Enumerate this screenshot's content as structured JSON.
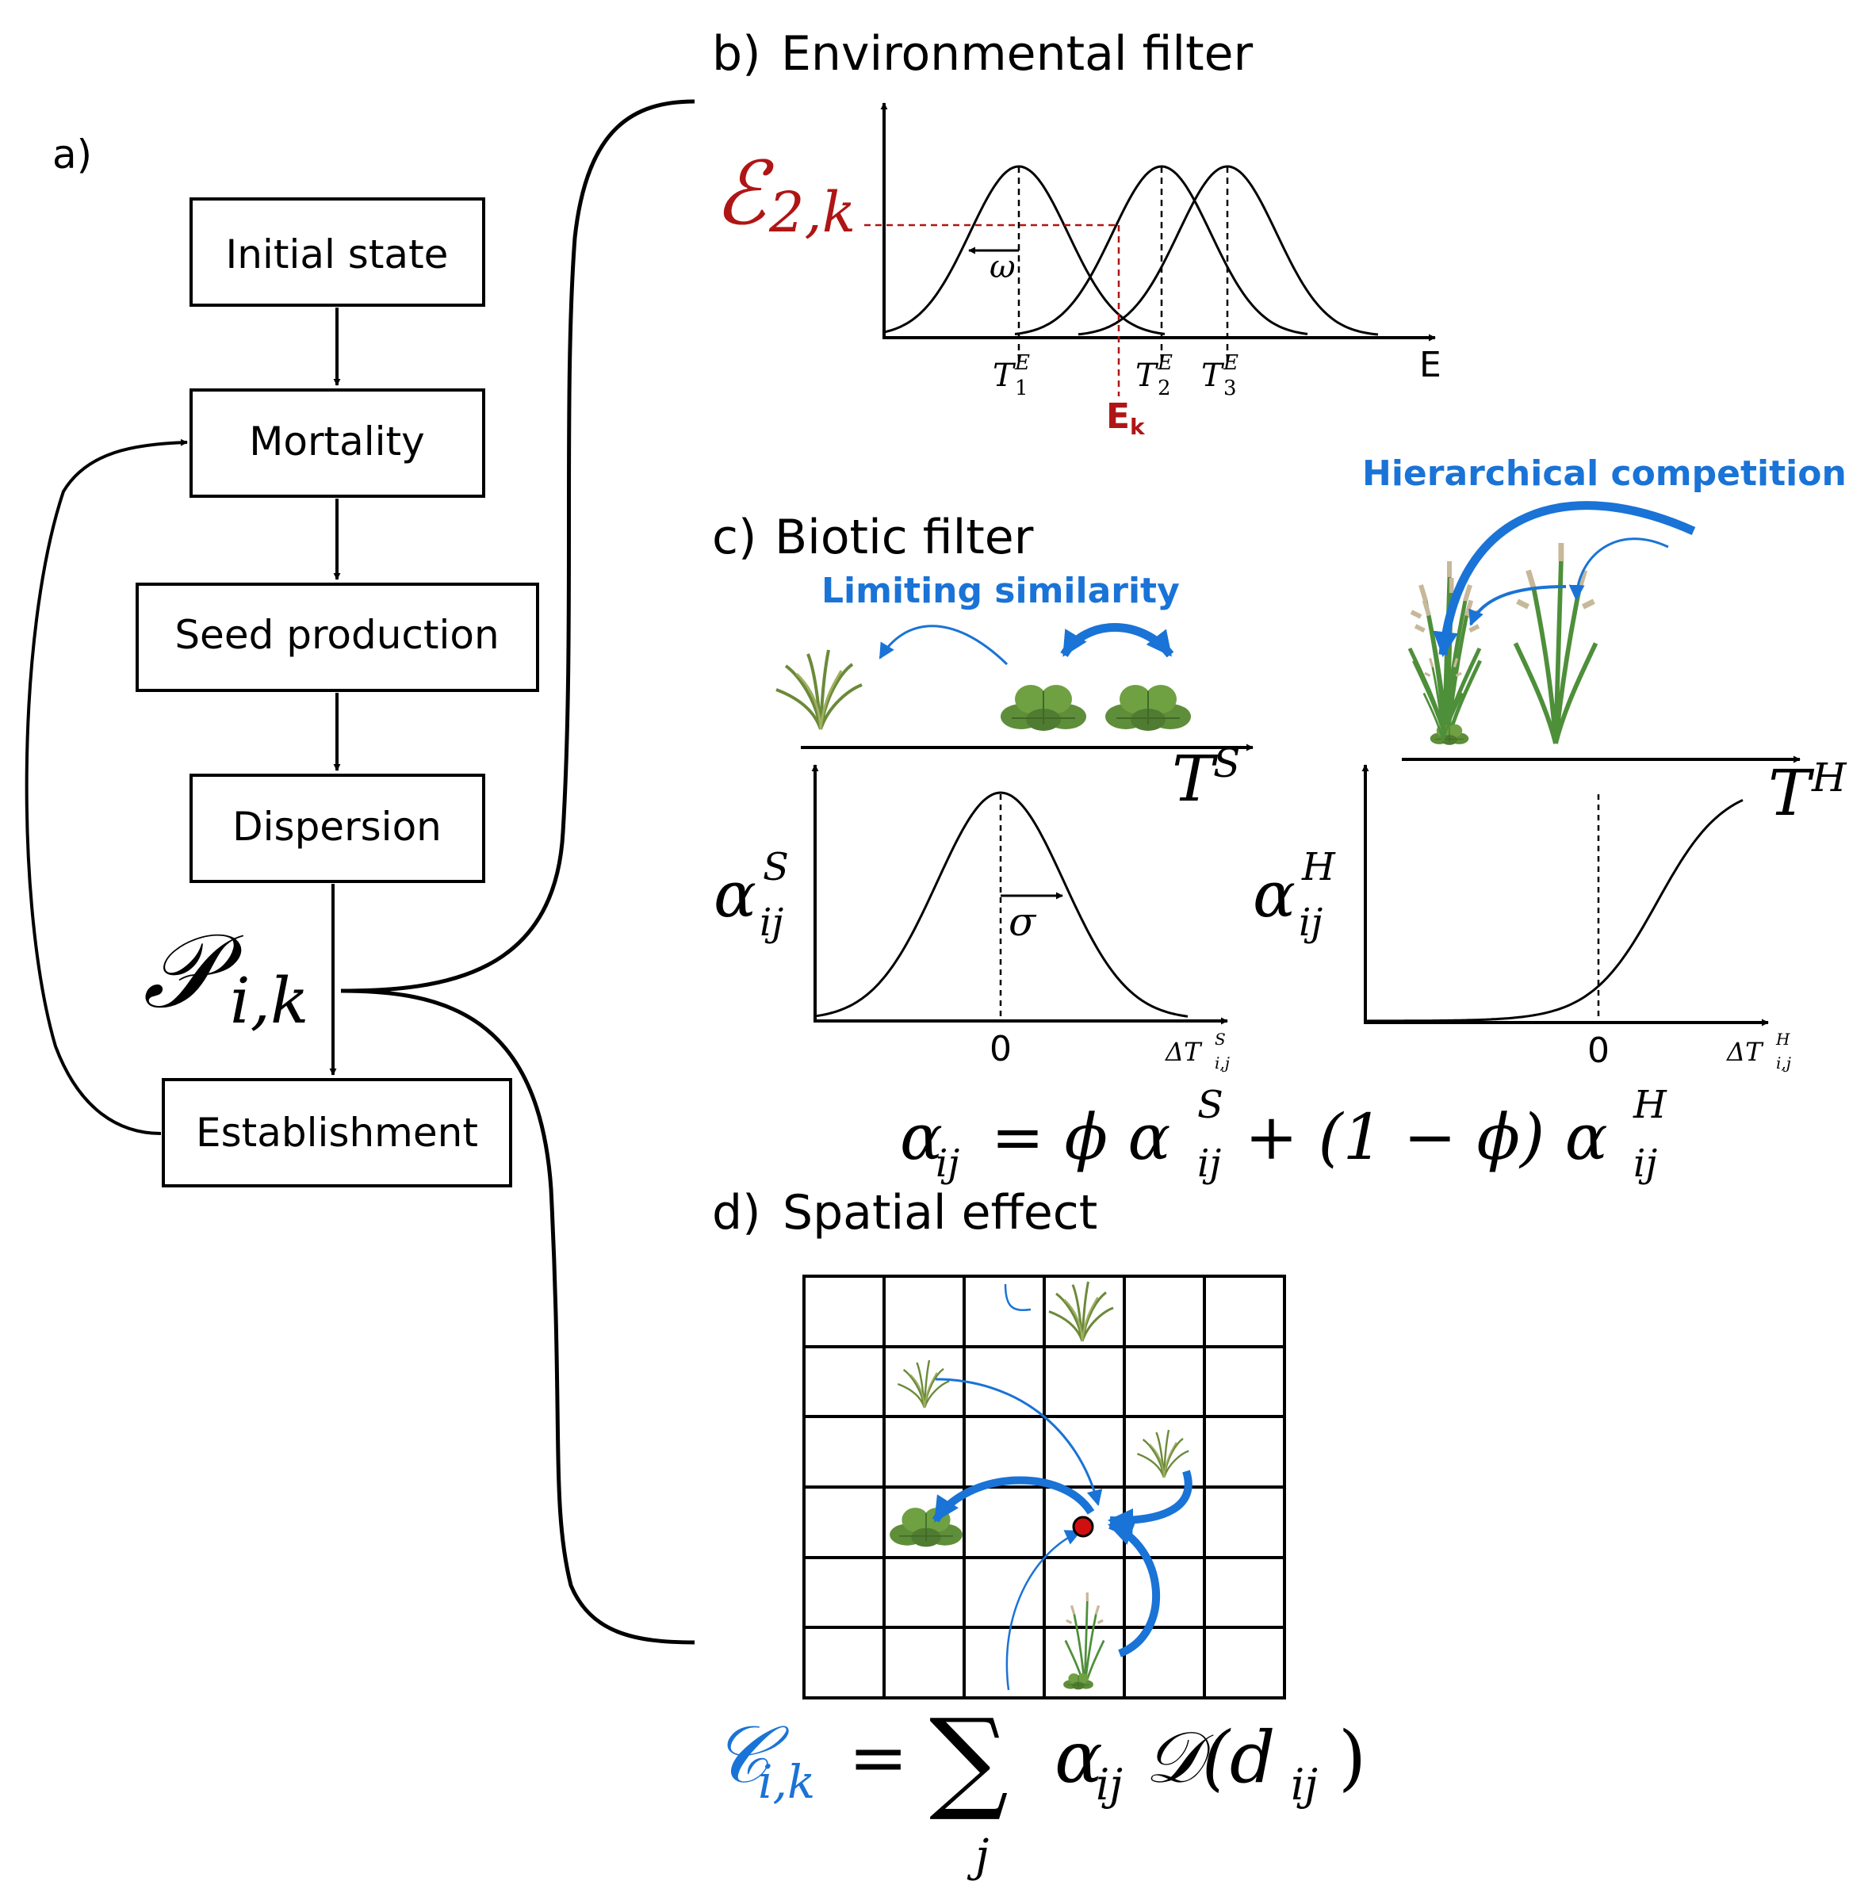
{
  "colors": {
    "accent_blue": "#1a73d6",
    "accent_red": "#b01515",
    "plant_green": "#6b9a3a",
    "line": "#000000"
  },
  "panel_a": {
    "label": "a)",
    "steps": [
      "Initial state",
      "Mortality",
      "Seed production",
      "Dispersion",
      "Establishment"
    ],
    "prob_P": "𝒫",
    "prob_sub": "i,k"
  },
  "panel_b": {
    "label": "b)",
    "title": "Environmental filter",
    "eps_symbol": "ℰ",
    "eps_sub": "2,k",
    "omega": "ω",
    "x_axis": "E",
    "ticks": [
      {
        "main": "T",
        "sub": "1",
        "sup": "E"
      },
      {
        "main": "T",
        "sub": "2",
        "sup": "E"
      },
      {
        "main": "T",
        "sub": "3",
        "sup": "E"
      }
    ],
    "ek_main": "E",
    "ek_sub": "k"
  },
  "panel_c": {
    "label": "c)",
    "title": "Biotic filter",
    "limiting_label": "Limiting similarity",
    "hier_label": "Hierarchical competition",
    "ts_main": "T",
    "ts_sup": "S",
    "th_main": "T",
    "th_sup": "H",
    "alpha_s_main": "α",
    "alpha_s_sup": "S",
    "alpha_s_sub": "ij",
    "alpha_h_main": "α",
    "alpha_h_sup": "H",
    "alpha_h_sub": "ij",
    "sigma": "σ",
    "zero_left": "0",
    "zero_right": "0",
    "dts_main": "ΔT",
    "dts_sup": "S",
    "dts_sub": "i,j",
    "dth_main": "ΔT",
    "dth_sup": "H",
    "dth_sub": "i,j",
    "eq_lhs": "α",
    "eq_lhs_sub": "ij",
    "eq_mid1": "= ϕ α",
    "eq_sup1": "S",
    "eq_sub1": "ij",
    "eq_mid2": "+ (1 − ϕ) α",
    "eq_sup2": "H",
    "eq_sub2": "ij"
  },
  "panel_d": {
    "label": "d)",
    "title": "Spatial effect",
    "c_symbol": "𝒞",
    "c_sub": "i,k",
    "eq_equals": "=",
    "sum": "∑",
    "sum_index": "j",
    "eq_rest": "α",
    "eq_rest_sub": "ij",
    "eq_tail": "𝒟(d",
    "eq_tail_sub": "ij",
    "eq_close": ")"
  }
}
